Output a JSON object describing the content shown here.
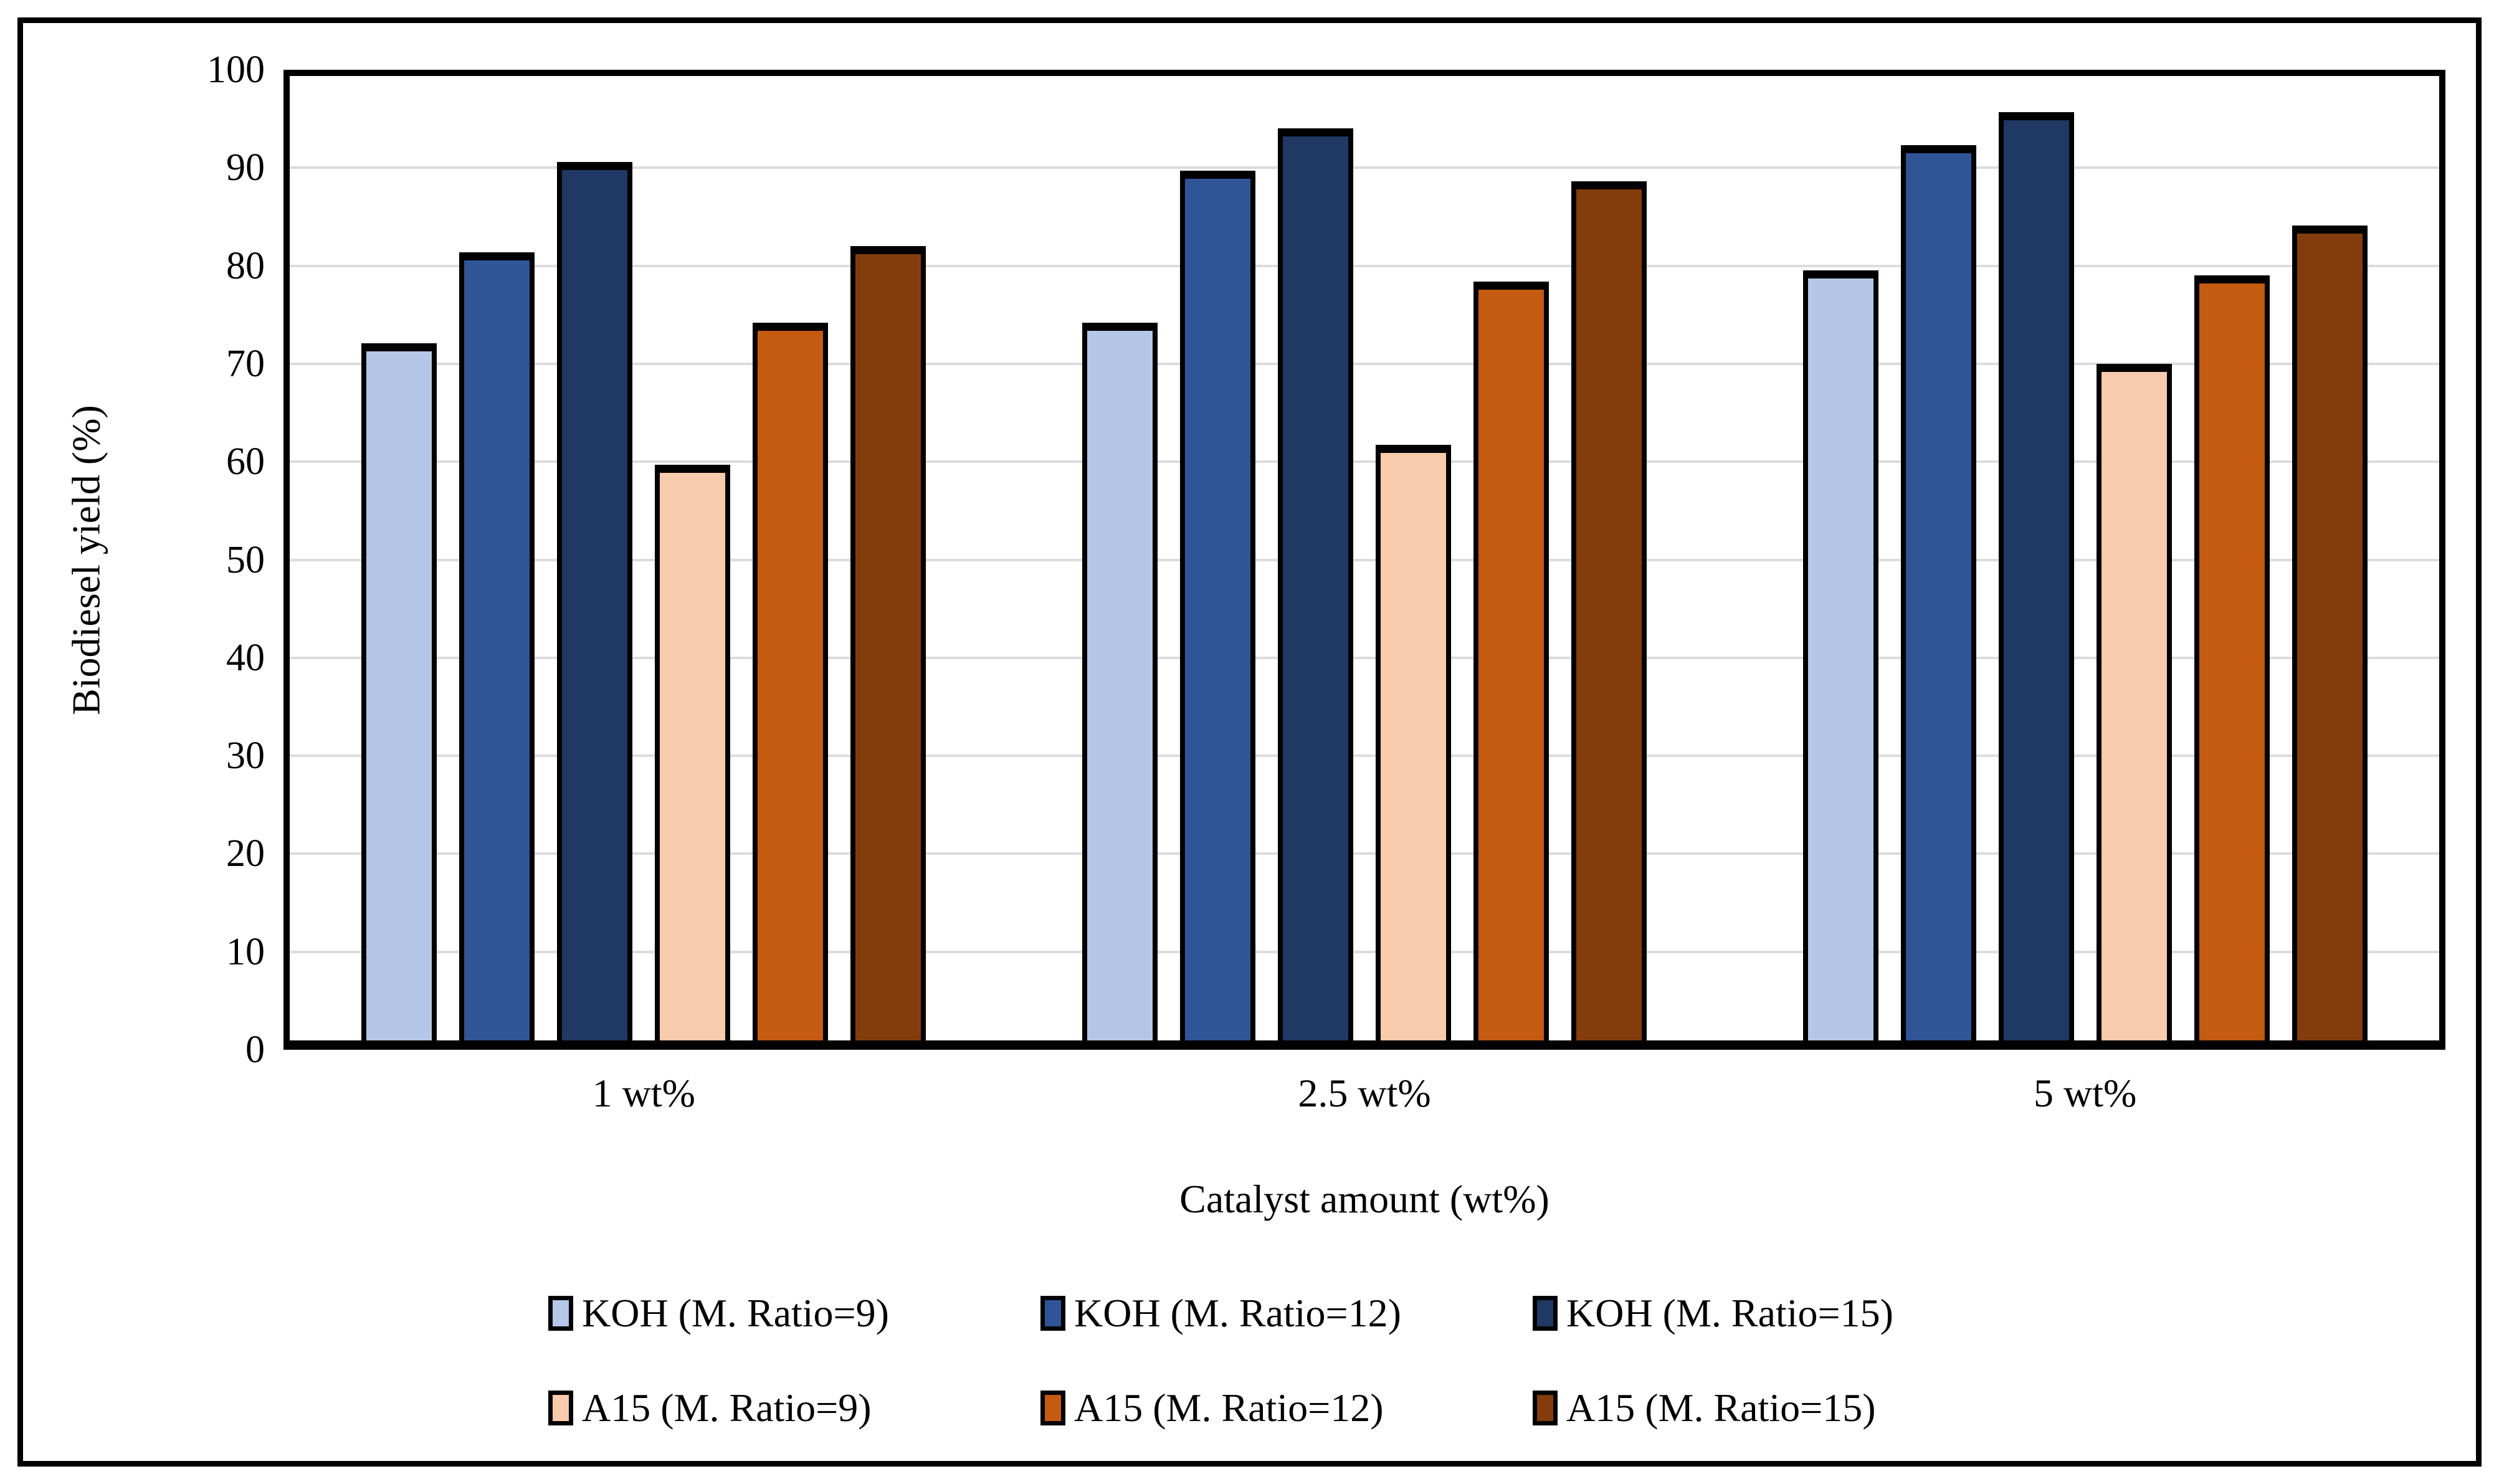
{
  "figure": {
    "background": "#FFFFFF",
    "border_color": "#000000",
    "grid_color": "#DCDCDC",
    "bar_outline_color": "#000000"
  },
  "chart_data": {
    "type": "bar",
    "title": "",
    "xlabel": "Catalyst amount (wt%)",
    "ylabel": "Biodiesel yield (%)",
    "categories": [
      "1 wt%",
      "2.5 wt%",
      "5 wt%"
    ],
    "series": [
      {
        "name": "KOH (M. Ratio=9)",
        "color": "#B4C7E7",
        "values": [
          72.1,
          74.2,
          79.5
        ]
      },
      {
        "name": "KOH (M. Ratio=12)",
        "color": "#2F5597",
        "values": [
          81.4,
          89.7,
          92.3
        ]
      },
      {
        "name": "KOH (M. Ratio=15)",
        "color": "#1F3864",
        "values": [
          90.6,
          94.0,
          95.7
        ]
      },
      {
        "name": "A15 (M. Ratio=9)",
        "color": "#F8CBAD",
        "values": [
          59.7,
          61.7,
          70.0
        ]
      },
      {
        "name": "A15 (M. Ratio=12)",
        "color": "#C55A11",
        "values": [
          74.2,
          78.4,
          79.0
        ]
      },
      {
        "name": "A15 (M. Ratio=15)",
        "color": "#843C0C",
        "values": [
          82.0,
          88.6,
          84.1
        ]
      }
    ],
    "ylim": [
      0,
      100
    ],
    "yticks": [
      0,
      10,
      20,
      30,
      40,
      50,
      60,
      70,
      80,
      90,
      100
    ],
    "grid": "horizontal",
    "legend_position": "bottom",
    "legend_rows": 2
  }
}
